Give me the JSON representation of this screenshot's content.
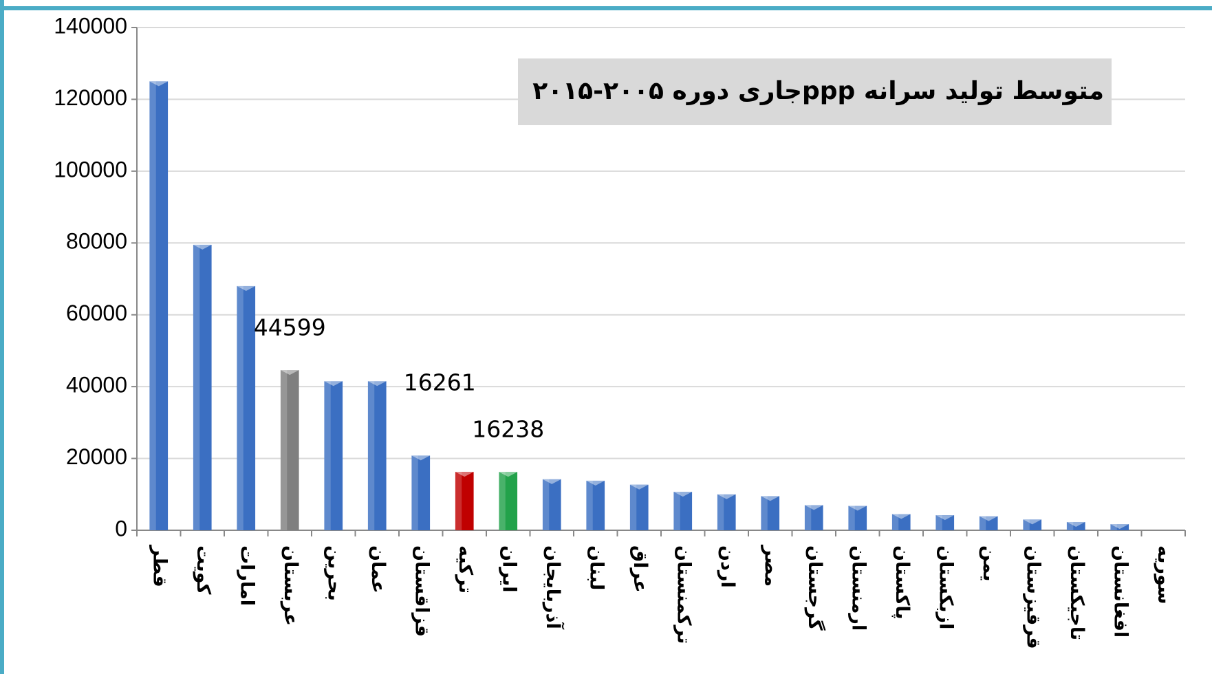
{
  "chart_data": {
    "type": "bar",
    "title": "متوسط تولید سرانه  pppجاری دوره ۲۰۰۵-۲۰۱۵",
    "categories": [
      "قطر",
      "کویت",
      "امارات",
      "عربستان",
      "بحرین",
      "عمان",
      "قزاقستان",
      "ترکیه",
      "ایران",
      "آذربایجان",
      "لبنان",
      "عراق",
      "ترکمنستان",
      "اردن",
      "مصر",
      "گرجستان",
      "ارمنستان",
      "پاکستان",
      "ازبکستان",
      "یمن",
      "قرقیزستان",
      "تاجیکستان",
      "افغانستان",
      "سوریه"
    ],
    "values": [
      125000,
      79500,
      68000,
      44599,
      41500,
      41500,
      20800,
      16261,
      16238,
      14200,
      13800,
      12700,
      10700,
      10000,
      9500,
      7000,
      6800,
      4500,
      4200,
      3900,
      3000,
      2300,
      1700,
      null
    ],
    "value_labels": [
      null,
      null,
      null,
      "44599",
      null,
      null,
      null,
      "16261",
      "16238",
      null,
      null,
      null,
      null,
      null,
      null,
      null,
      null,
      null,
      null,
      null,
      null,
      null,
      null,
      null
    ],
    "colors": [
      "#3b6fc2",
      "#3b6fc2",
      "#3b6fc2",
      "#7f7f7f",
      "#3b6fc2",
      "#3b6fc2",
      "#3b6fc2",
      "#c00000",
      "#22a24a",
      "#3b6fc2",
      "#3b6fc2",
      "#3b6fc2",
      "#3b6fc2",
      "#3b6fc2",
      "#3b6fc2",
      "#3b6fc2",
      "#3b6fc2",
      "#3b6fc2",
      "#3b6fc2",
      "#3b6fc2",
      "#3b6fc2",
      "#3b6fc2",
      "#3b6fc2",
      "#3b6fc2"
    ],
    "ylim": [
      0,
      140000
    ],
    "yticks": [
      0,
      20000,
      40000,
      60000,
      80000,
      100000,
      120000,
      140000
    ],
    "grid": true
  }
}
